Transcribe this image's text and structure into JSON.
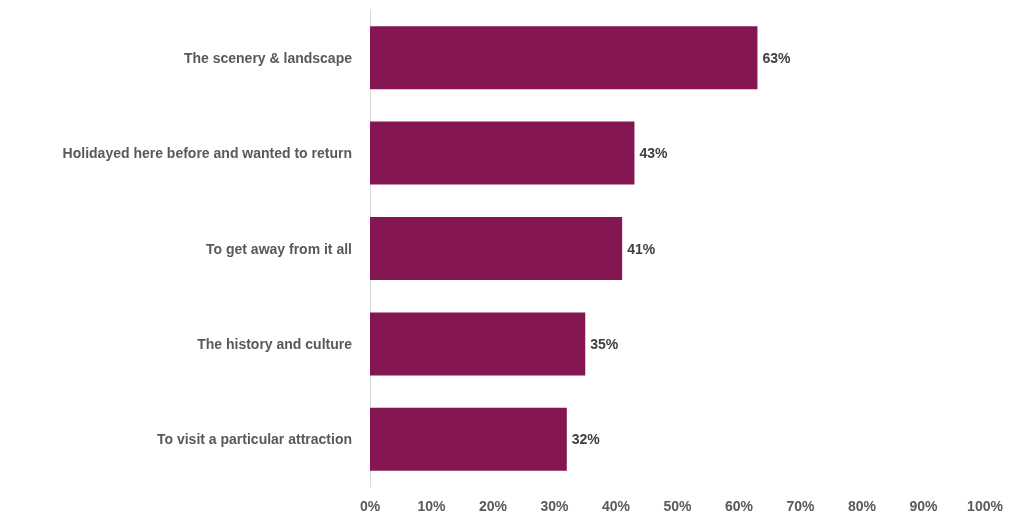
{
  "chart_data": {
    "type": "bar",
    "orientation": "horizontal",
    "categories": [
      "The scenery & landscape",
      "Holidayed here before and wanted to return",
      "To get away from it all",
      "The history and culture",
      "To visit a particular attraction"
    ],
    "values": [
      63,
      43,
      41,
      35,
      32
    ],
    "value_labels": [
      "63%",
      "43%",
      "41%",
      "35%",
      "32%"
    ],
    "color": "#841752",
    "xlim": [
      0,
      100
    ],
    "xticks": [
      {
        "value": 0,
        "label": "0%"
      },
      {
        "value": 10,
        "label": "10%"
      },
      {
        "value": 20,
        "label": "20%"
      },
      {
        "value": 30,
        "label": "30%"
      },
      {
        "value": 40,
        "label": "40%"
      },
      {
        "value": 50,
        "label": "50%"
      },
      {
        "value": 60,
        "label": "60%"
      },
      {
        "value": 70,
        "label": "70%"
      },
      {
        "value": 80,
        "label": "80%"
      },
      {
        "value": 90,
        "label": "90%"
      },
      {
        "value": 100,
        "label": "100%"
      }
    ],
    "grid": false
  }
}
